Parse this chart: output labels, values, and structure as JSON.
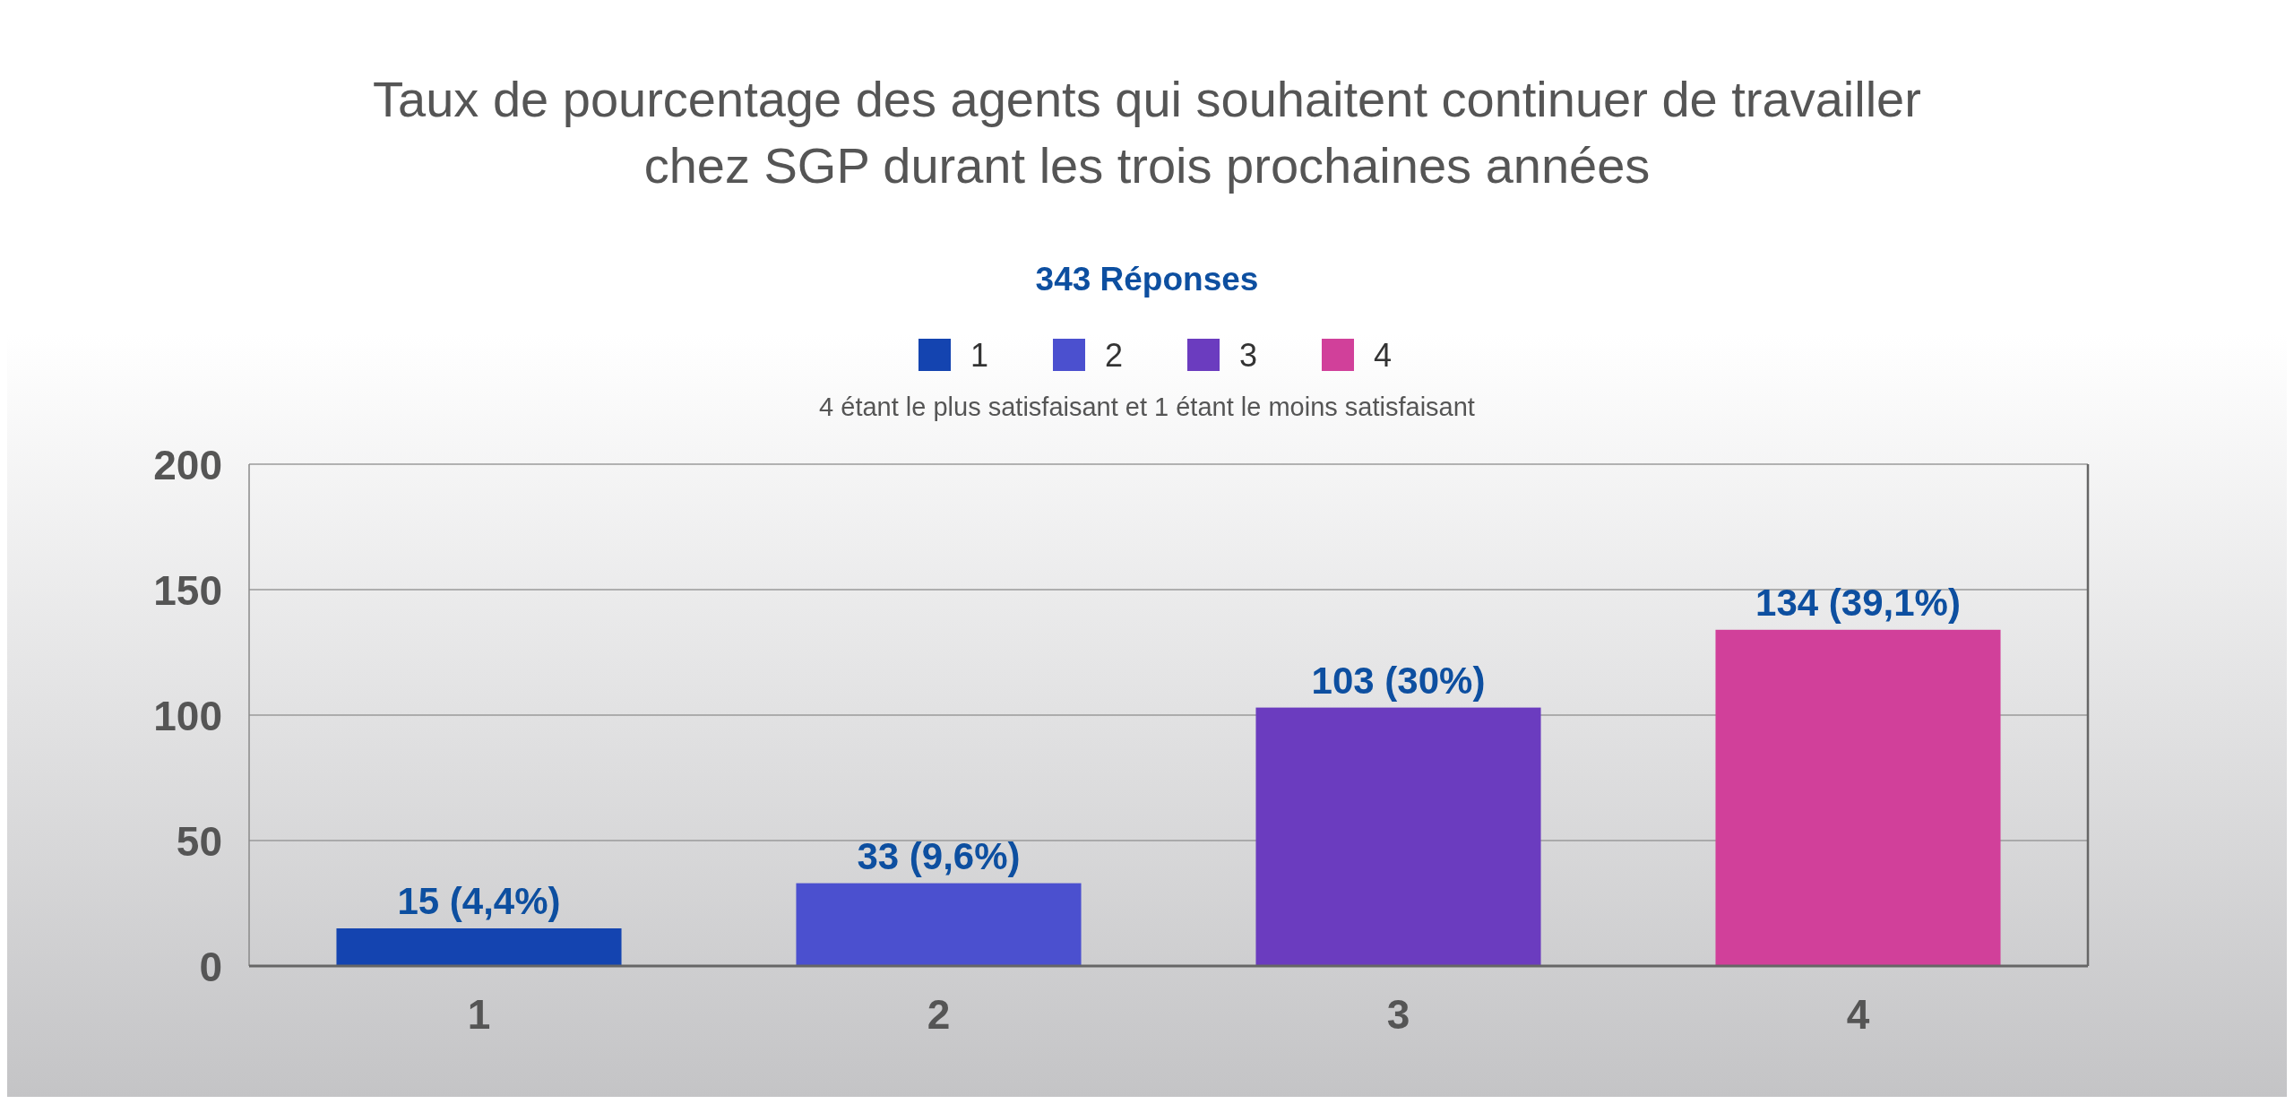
{
  "chart_data": {
    "type": "bar",
    "title": "Taux de pourcentage des agents qui souhaitent continuer de travailler chez SGP durant les trois prochaines années",
    "subtitle": "343 Réponses",
    "annotations": [
      "4 étant le plus satisfaisant et 1 étant le moins satisfaisant"
    ],
    "categories": [
      "1",
      "2",
      "3",
      "4"
    ],
    "stacked": true,
    "series": [
      {
        "name": "1",
        "color": "#1444b0",
        "values": [
          15,
          null,
          null,
          null
        ],
        "value_labels": [
          "15 (4,4%)",
          null,
          null,
          null
        ]
      },
      {
        "name": "2",
        "color": "#4b50cf",
        "values": [
          null,
          33,
          null,
          null
        ],
        "value_labels": [
          null,
          "33 (9,6%)",
          null,
          null
        ]
      },
      {
        "name": "3",
        "color": "#6b3cbf",
        "values": [
          null,
          null,
          103,
          null
        ],
        "value_labels": [
          null,
          null,
          "103 (30%)",
          null
        ]
      },
      {
        "name": "4",
        "color": "#d1409a",
        "values": [
          null,
          null,
          null,
          134
        ],
        "value_labels": [
          null,
          null,
          null,
          "134 (39,1%)"
        ]
      }
    ],
    "ylim": [
      0,
      200
    ],
    "yticks": [
      0,
      50,
      100,
      150,
      200
    ],
    "grid": "y",
    "legend": "top"
  }
}
